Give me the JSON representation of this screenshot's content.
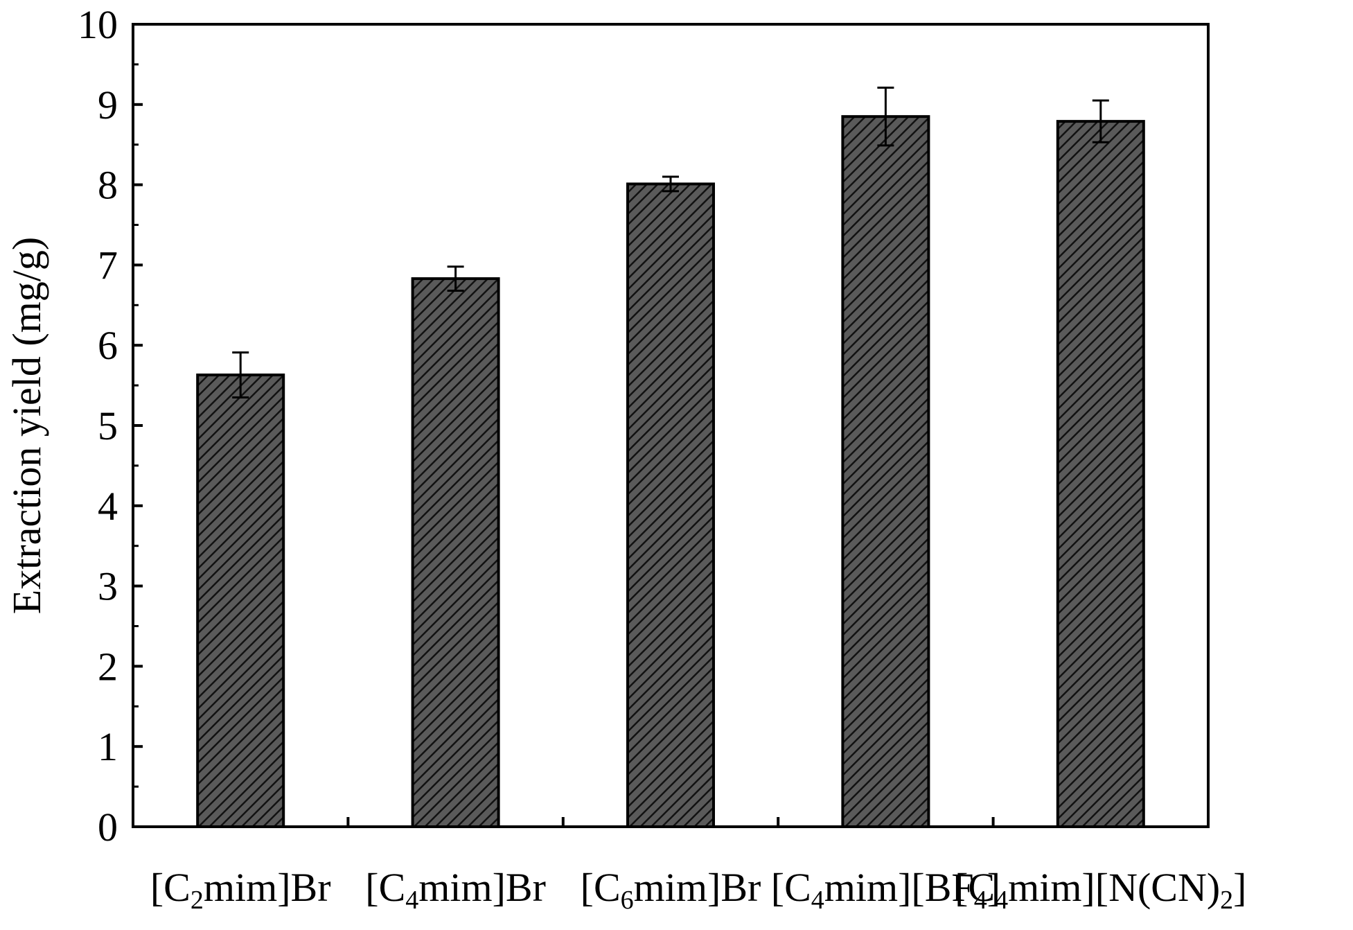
{
  "chart_data": {
    "type": "bar",
    "title": "",
    "xlabel": "",
    "ylabel": "Extraction yield (mg/g)",
    "ylim": [
      0,
      10
    ],
    "yticks": [
      "0",
      "1",
      "2",
      "3",
      "4",
      "5",
      "6",
      "7",
      "8",
      "9",
      "10"
    ],
    "grid": false,
    "legend": "none",
    "categories": [
      "[C2mim]Br",
      "[C4mim]Br",
      "[C6mim]Br",
      "[C4mim][BF4]",
      "[C4mim][N(CN)2]"
    ],
    "category_parts": [
      [
        {
          "t": "[C",
          "sub": false
        },
        {
          "t": "2",
          "sub": true
        },
        {
          "t": "mim]Br",
          "sub": false
        }
      ],
      [
        {
          "t": "[C",
          "sub": false
        },
        {
          "t": "4",
          "sub": true
        },
        {
          "t": "mim]Br",
          "sub": false
        }
      ],
      [
        {
          "t": "[C",
          "sub": false
        },
        {
          "t": "6",
          "sub": true
        },
        {
          "t": "mim]Br",
          "sub": false
        }
      ],
      [
        {
          "t": "[C",
          "sub": false
        },
        {
          "t": "4",
          "sub": true
        },
        {
          "t": "mim][BF",
          "sub": false
        },
        {
          "t": "4",
          "sub": true
        },
        {
          "t": "]",
          "sub": false
        }
      ],
      [
        {
          "t": "[C",
          "sub": false
        },
        {
          "t": "4",
          "sub": true
        },
        {
          "t": "mim][N(CN)",
          "sub": false
        },
        {
          "t": "2",
          "sub": true
        },
        {
          "t": "]",
          "sub": false
        }
      ]
    ],
    "values": [
      5.63,
      6.83,
      8.01,
      8.85,
      8.79
    ],
    "errors": [
      0.28,
      0.15,
      0.09,
      0.36,
      0.26
    ],
    "colors": {
      "bar_fill": "#5a5a5a",
      "hatch": "#111111",
      "outline": "#000000",
      "axis": "#000000"
    }
  }
}
